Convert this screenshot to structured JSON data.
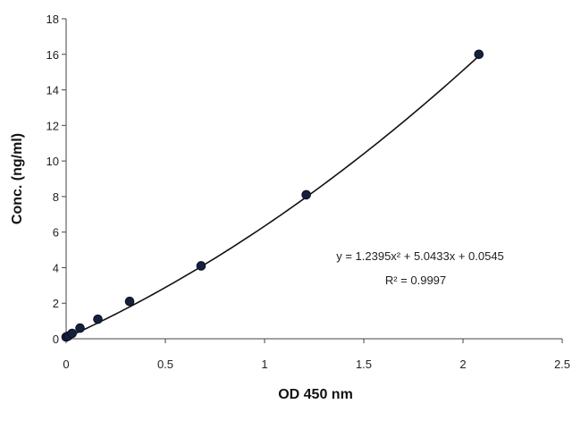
{
  "chart_data": {
    "type": "scatter",
    "title": "",
    "xlabel": "OD 450 nm",
    "ylabel": "Conc. (ng/ml)",
    "xlim": [
      0,
      2.5
    ],
    "ylim": [
      0,
      18
    ],
    "x_ticks": [
      "0",
      "0.5",
      "1",
      "1.5",
      "2",
      "2.5"
    ],
    "y_ticks": [
      "0",
      "2",
      "4",
      "6",
      "8",
      "10",
      "12",
      "14",
      "16",
      "18"
    ],
    "grid": false,
    "legend": "none",
    "marker_color": "#14213d",
    "line_color": "#111111",
    "series": [
      {
        "x": [
          0.0,
          0.01,
          0.03,
          0.07,
          0.16,
          0.32,
          0.68,
          1.21,
          2.08
        ],
        "y": [
          0.1,
          0.15,
          0.3,
          0.6,
          1.1,
          2.1,
          4.1,
          8.1,
          16.0
        ]
      }
    ],
    "trendline": {
      "type": "polynomial",
      "coefficients": [
        1.2395,
        5.0433,
        0.0545
      ],
      "x_range": [
        0,
        2.08
      ]
    },
    "annotations": [
      "y = 1.2395x² + 5.0433x + 0.0545",
      "R² = 0.9997"
    ]
  }
}
